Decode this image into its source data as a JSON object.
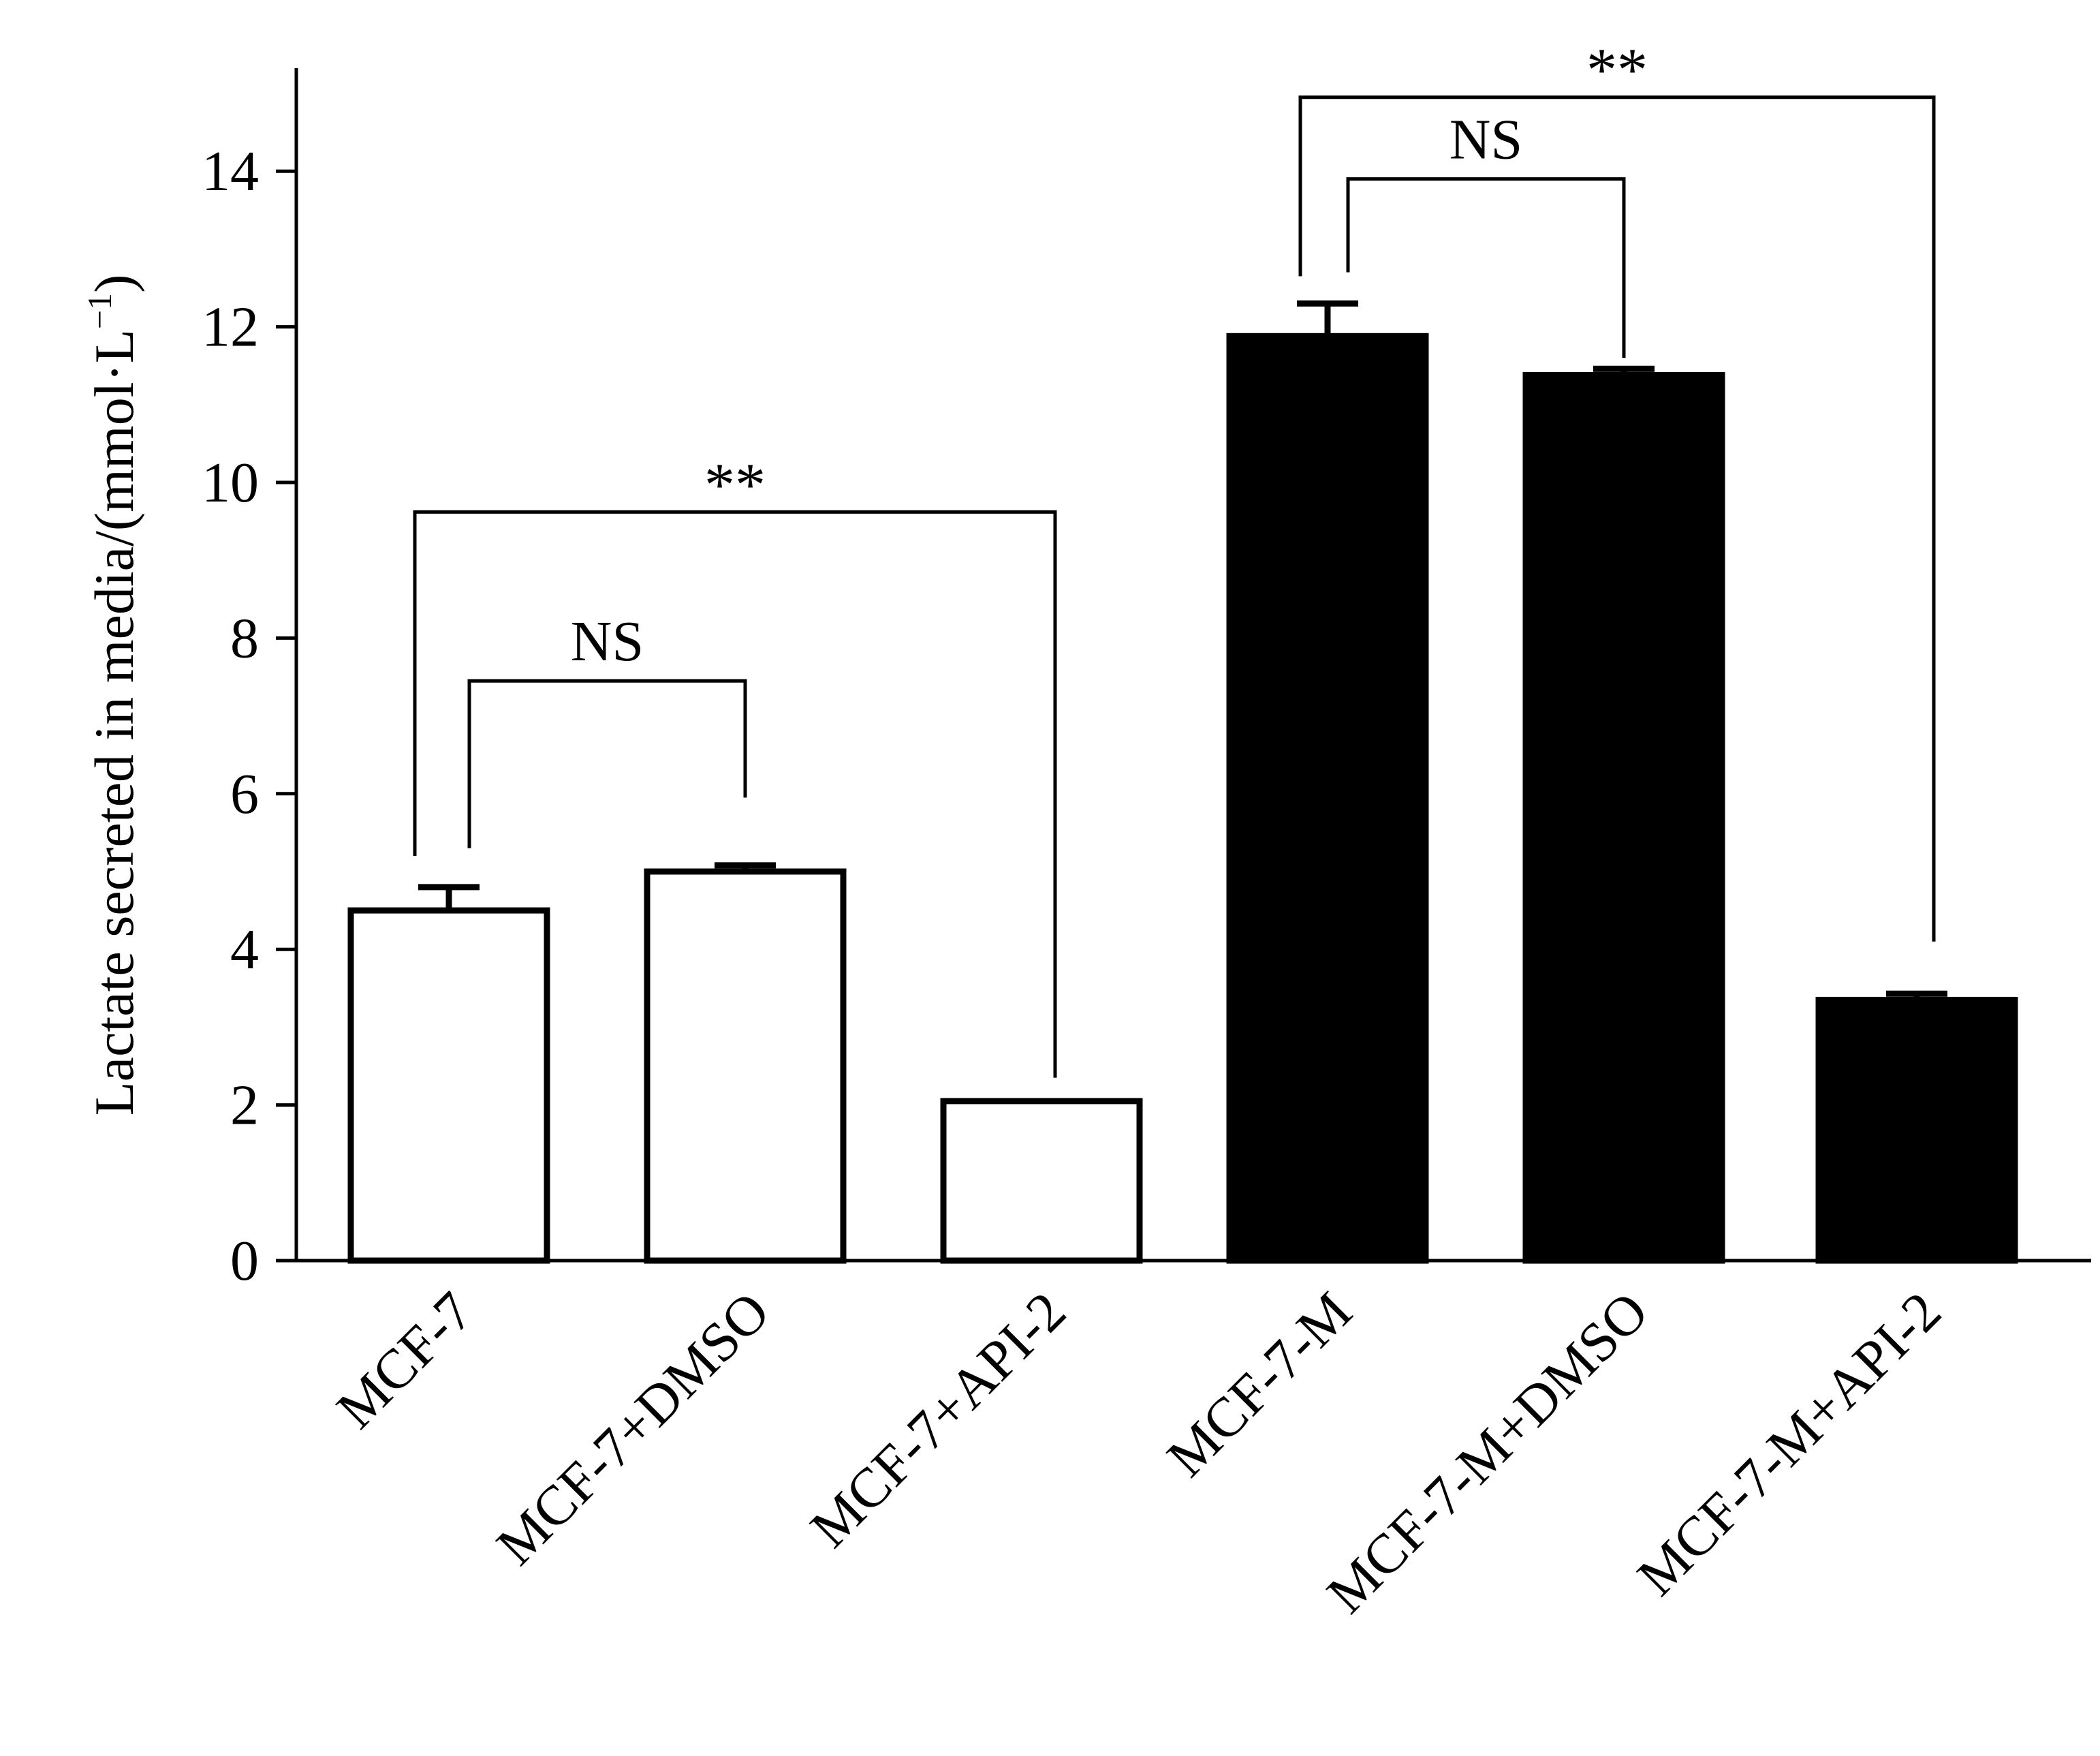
{
  "chart_data": {
    "type": "bar",
    "ylabel_main": "Lactate secreted in media/(mmol·L",
    "ylabel_sup": "−1",
    "ylabel_close": ")",
    "ylim": [
      0,
      15
    ],
    "yticks": [
      0,
      2,
      4,
      6,
      8,
      10,
      12,
      14
    ],
    "categories": [
      "MCF-7",
      "MCF-7+DMSO",
      "MCF-7+API-2",
      "MCF-7-M",
      "MCF-7-M+DMSO",
      "MCF-7-M+API-2"
    ],
    "values": [
      4.5,
      5.0,
      2.05,
      11.88,
      11.38,
      3.35
    ],
    "errors": [
      0.3,
      0.08,
      0.0,
      0.42,
      0.08,
      0.08
    ],
    "fills": [
      "#ffffff",
      "#ffffff",
      "#ffffff",
      "#000000",
      "#000000",
      "#000000"
    ],
    "grid": false,
    "annotations": [
      {
        "label": "NS",
        "from": 0,
        "to": 1,
        "level": 7.45,
        "from_end": 5.3,
        "to_end": 5.95
      },
      {
        "label": "**",
        "from": 0,
        "to": 2,
        "level": 9.62,
        "from_end": 5.2,
        "to_end": 2.35
      },
      {
        "label": "NS",
        "from": 3,
        "to": 4,
        "level": 13.9,
        "from_end": 12.7,
        "to_end": 11.6
      },
      {
        "label": "**",
        "from": 3,
        "to": 5,
        "level": 14.95,
        "from_end": 12.65,
        "to_end": 4.1
      }
    ]
  }
}
